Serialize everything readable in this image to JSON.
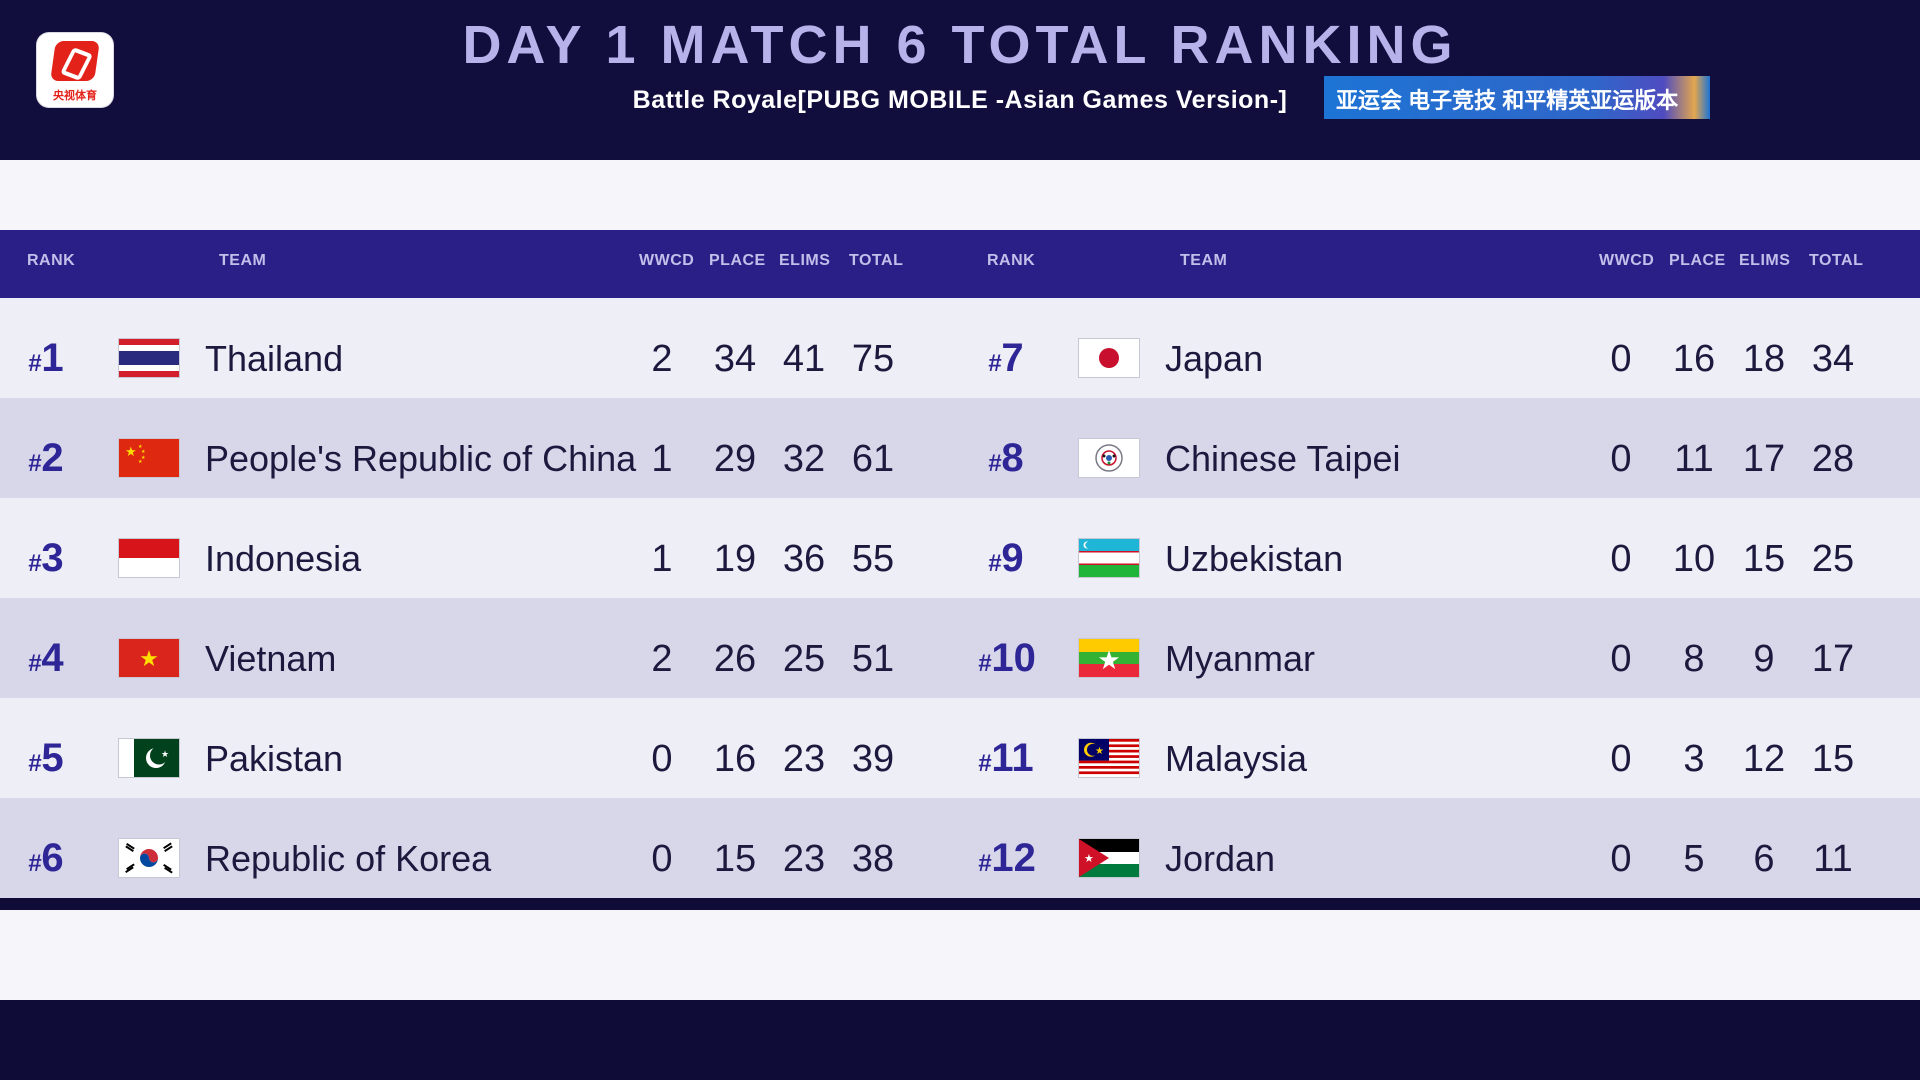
{
  "header": {
    "logo_text": "央视体育",
    "title": "DAY 1 MATCH 6 TOTAL RANKING",
    "subtitle": "Battle Royale[PUBG MOBILE -Asian Games Version-]",
    "banner_text": "亚运会 电子竞技 和平精英亚运版本"
  },
  "columns": {
    "rank": "RANK",
    "team": "TEAM",
    "wwcd": "WWCD",
    "place": "PLACE",
    "elims": "ELIMS",
    "total": "TOTAL"
  },
  "rows": [
    {
      "left": {
        "hash": "#",
        "rank": "1",
        "flag": "thailand-flag",
        "team": "Thailand",
        "wwcd": "2",
        "place": "34",
        "elims": "41",
        "total": "75"
      },
      "right": {
        "hash": "#",
        "rank": "7",
        "flag": "japan-flag",
        "team": "Japan",
        "wwcd": "0",
        "place": "16",
        "elims": "18",
        "total": "34"
      }
    },
    {
      "left": {
        "hash": "#",
        "rank": "2",
        "flag": "china-flag",
        "team": "People's Republic of China",
        "wwcd": "1",
        "place": "29",
        "elims": "32",
        "total": "61"
      },
      "right": {
        "hash": "#",
        "rank": "8",
        "flag": "chinese-taipei-flag",
        "team": "Chinese Taipei",
        "wwcd": "0",
        "place": "11",
        "elims": "17",
        "total": "28"
      }
    },
    {
      "left": {
        "hash": "#",
        "rank": "3",
        "flag": "indonesia-flag",
        "team": "Indonesia",
        "wwcd": "1",
        "place": "19",
        "elims": "36",
        "total": "55"
      },
      "right": {
        "hash": "#",
        "rank": "9",
        "flag": "uzbekistan-flag",
        "team": "Uzbekistan",
        "wwcd": "0",
        "place": "10",
        "elims": "15",
        "total": "25"
      }
    },
    {
      "left": {
        "hash": "#",
        "rank": "4",
        "flag": "vietnam-flag",
        "team": "Vietnam",
        "wwcd": "2",
        "place": "26",
        "elims": "25",
        "total": "51"
      },
      "right": {
        "hash": "#",
        "rank": "10",
        "flag": "myanmar-flag",
        "team": "Myanmar",
        "wwcd": "0",
        "place": "8",
        "elims": "9",
        "total": "17"
      }
    },
    {
      "left": {
        "hash": "#",
        "rank": "5",
        "flag": "pakistan-flag",
        "team": "Pakistan",
        "wwcd": "0",
        "place": "16",
        "elims": "23",
        "total": "39"
      },
      "right": {
        "hash": "#",
        "rank": "11",
        "flag": "malaysia-flag",
        "team": "Malaysia",
        "wwcd": "0",
        "place": "3",
        "elims": "12",
        "total": "15"
      }
    },
    {
      "left": {
        "hash": "#",
        "rank": "6",
        "flag": "korea-flag",
        "team": "Republic of Korea",
        "wwcd": "0",
        "place": "15",
        "elims": "23",
        "total": "38"
      },
      "right": {
        "hash": "#",
        "rank": "12",
        "flag": "jordan-flag",
        "team": "Jordan",
        "wwcd": "0",
        "place": "5",
        "elims": "6",
        "total": "11"
      }
    }
  ],
  "colors": {
    "header_bg": "#110d3c",
    "title": "#b7b2ea",
    "column_bar": "#2a1f86",
    "rank_text": "#2e2696",
    "row_light": "#eeeef6",
    "row_dark": "#d8d7ea"
  }
}
